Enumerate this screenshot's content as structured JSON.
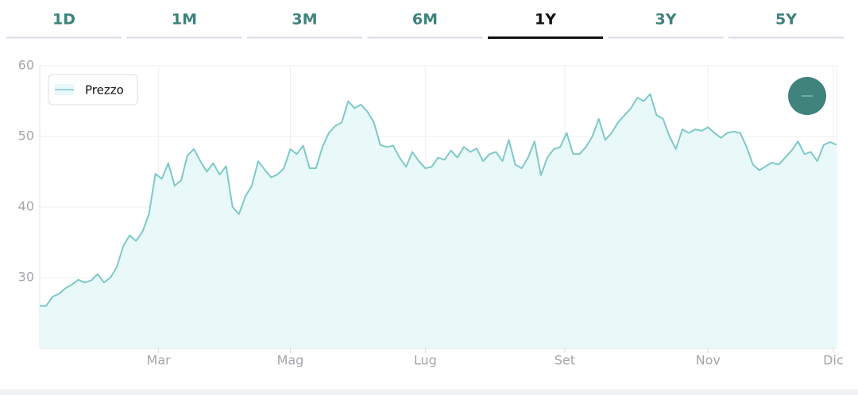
{
  "tabs": [
    "1D",
    "1M",
    "3M",
    "6M",
    "1Y",
    "3Y",
    "5Y"
  ],
  "active_tab_index": 4,
  "chart_data": {
    "type": "line",
    "legend_position": "upper left",
    "grid": true,
    "series": [
      {
        "name": "Prezzo",
        "color": "#7fc9c9",
        "fill": "#e9f8f8",
        "values": [
          26,
          26,
          27.3,
          27.7,
          28.5,
          29,
          29.7,
          29.3,
          29.6,
          30.5,
          29.3,
          30,
          31.5,
          34.5,
          36,
          35.2,
          36.5,
          39,
          44.7,
          44,
          46.2,
          43,
          43.8,
          47.3,
          48.2,
          46.5,
          45,
          46.2,
          44.6,
          45.8,
          40,
          39,
          41.5,
          43,
          46.5,
          45.3,
          44.2,
          44.6,
          45.5,
          48.2,
          47.5,
          48.7,
          45.5,
          45.5,
          48.5,
          50.5,
          51.5,
          52,
          55,
          54,
          54.5,
          53.5,
          52,
          48.8,
          48.5,
          48.7,
          47,
          45.7,
          47.8,
          46.5,
          45.5,
          45.7,
          47,
          46.7,
          48,
          47,
          48.5,
          47.8,
          48.3,
          46.5,
          47.5,
          47.8,
          46.5,
          49.5,
          46,
          45.5,
          47,
          49.3,
          44.5,
          47,
          48.2,
          48.5,
          50.5,
          47.5,
          47.5,
          48.5,
          50,
          52.5,
          49.5,
          50.5,
          52,
          53,
          54,
          55.5,
          55,
          56,
          53,
          52.5,
          50,
          48.2,
          51,
          50.5,
          51,
          50.8,
          51.3,
          50.5,
          49.8,
          50.5,
          50.7,
          50.5,
          48.5,
          46,
          45.2,
          45.8,
          46.3,
          46,
          47,
          48,
          49.3,
          47.5,
          47.8,
          46.5,
          48.8,
          49.2,
          48.8
        ]
      }
    ],
    "xlim": [
      0,
      124
    ],
    "xticks": [
      {
        "value": 18.5,
        "label": "Mar"
      },
      {
        "value": 39,
        "label": "Mag"
      },
      {
        "value": 60,
        "label": "Lug"
      },
      {
        "value": 81.7,
        "label": "Set"
      },
      {
        "value": 104,
        "label": "Nov"
      },
      {
        "value": 123.5,
        "label": "Dic"
      }
    ],
    "ylim": [
      20,
      60
    ],
    "yticks": [
      30,
      40,
      50,
      60
    ]
  }
}
